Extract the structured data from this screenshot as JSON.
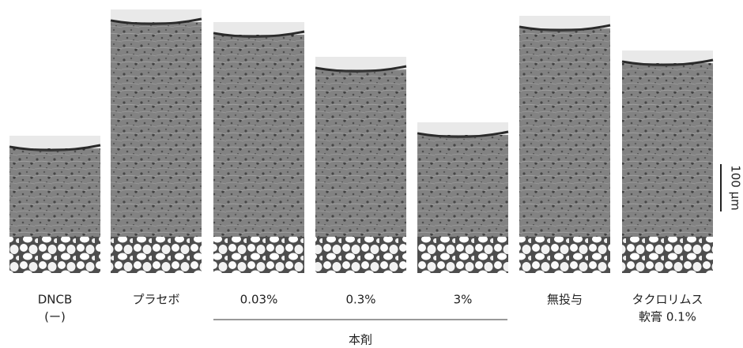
{
  "panels": [
    {
      "label": [
        "DNCB",
        "(ー)"
      ]
    },
    {
      "label": [
        "プラセボ"
      ]
    },
    {
      "label": [
        "0.03%"
      ]
    },
    {
      "label": [
        "0.3%"
      ]
    },
    {
      "label": [
        "3%"
      ]
    },
    {
      "label": [
        "無投与"
      ]
    },
    {
      "label": [
        "タクロリムス",
        "軟膏 0.1%"
      ]
    }
  ],
  "group_label": "本剤",
  "scale_bar": "100 μm"
}
